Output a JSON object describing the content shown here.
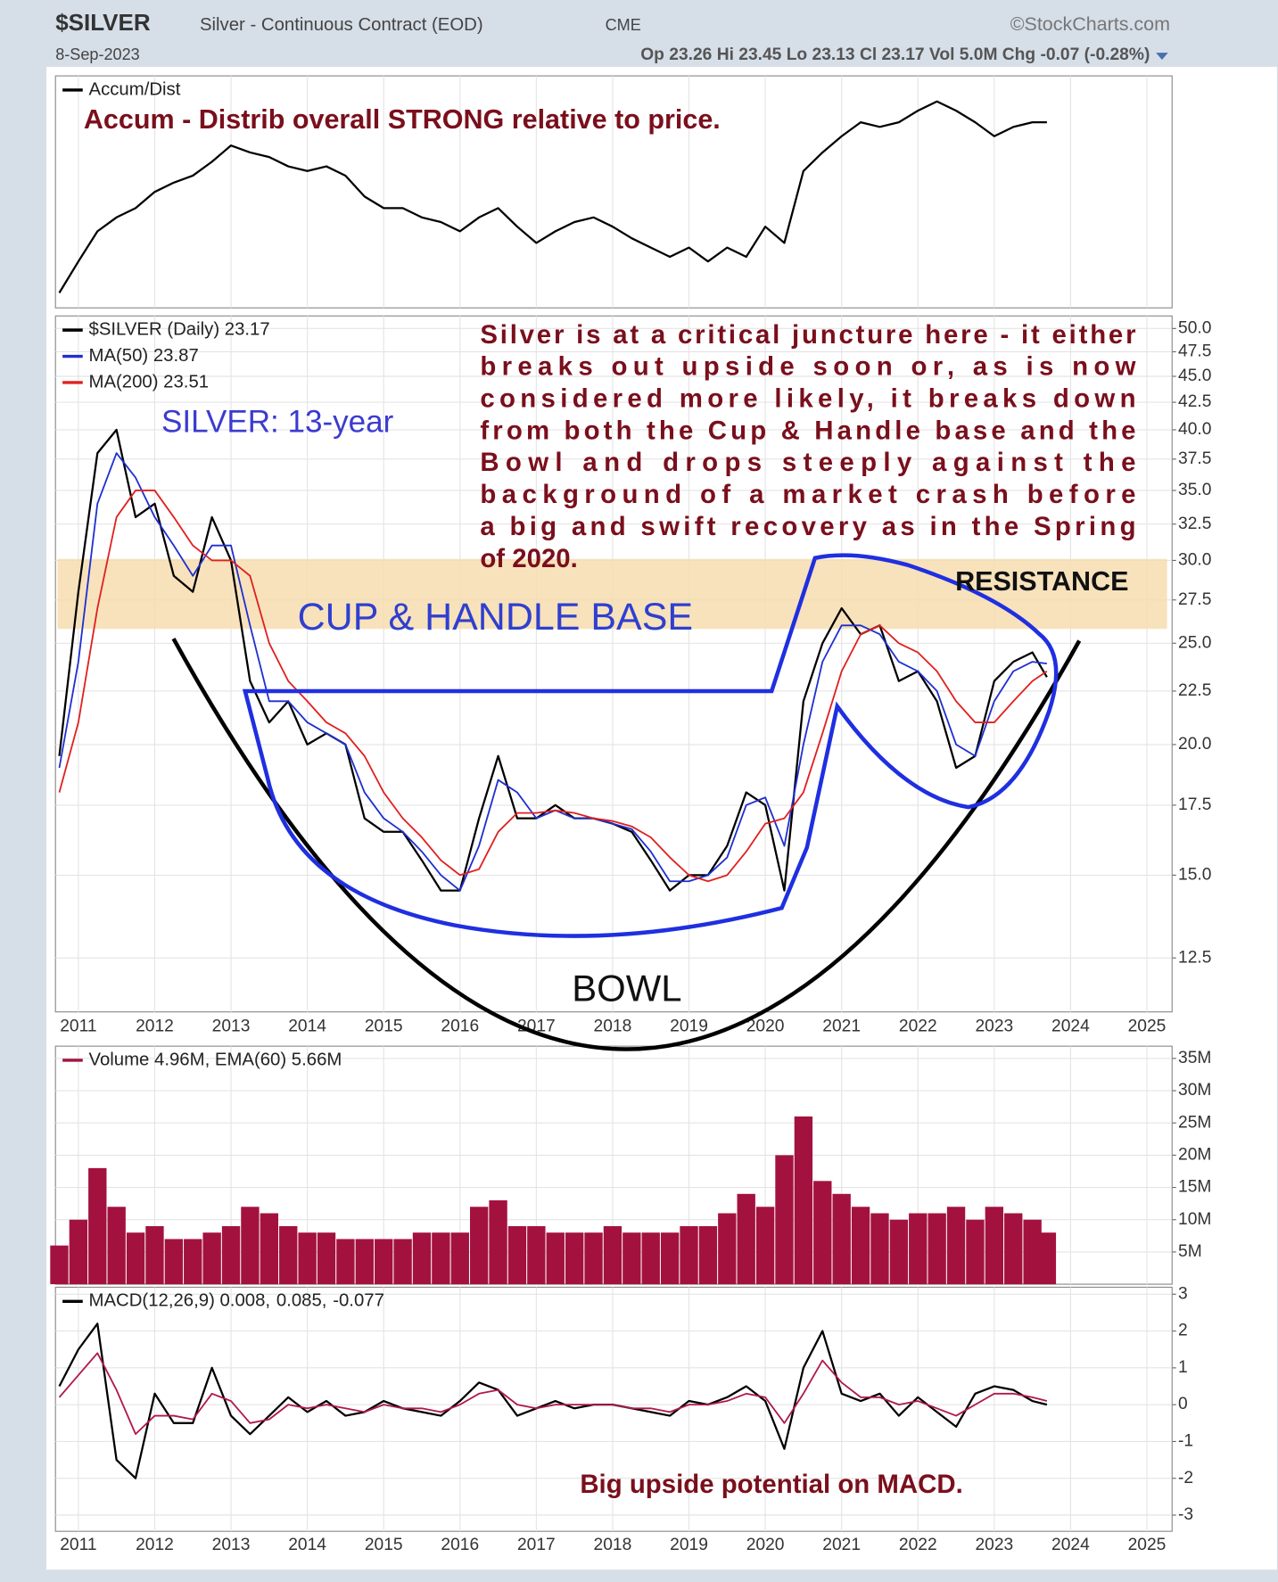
{
  "header": {
    "symbol": "$SILVER",
    "description": "Silver - Continuous Contract (EOD)",
    "exchange": "CME",
    "source": "©StockCharts.com",
    "date": "8-Sep-2023",
    "quote": "Op 23.26 Hi 23.45 Lo 23.13 Cl 23.17 Vol 5.0M Chg -0.07 (-0.28%)"
  },
  "chart_data": [
    {
      "type": "line",
      "annotation": "Accum - Distrib overall STRONG relative to price.",
      "x": [
        2010.75,
        2011,
        2011.25,
        2011.5,
        2011.75,
        2012,
        2012.25,
        2012.5,
        2012.75,
        2013,
        2013.25,
        2013.5,
        2013.75,
        2014,
        2014.25,
        2014.5,
        2014.75,
        2015,
        2015.25,
        2015.5,
        2015.75,
        2016,
        2016.25,
        2016.5,
        2016.75,
        2017,
        2017.25,
        2017.5,
        2017.75,
        2018,
        2018.25,
        2018.5,
        2018.75,
        2019,
        2019.25,
        2019.5,
        2019.75,
        2020,
        2020.25,
        2020.5,
        2020.75,
        2021,
        2021.25,
        2021.5,
        2021.75,
        2022,
        2022.25,
        2022.5,
        2022.75,
        2023,
        2023.25,
        2023.5,
        2023.69
      ],
      "series": [
        {
          "name": "Accum/Dist",
          "color": "#000000",
          "values": [
            6.5,
            20,
            33,
            39,
            43,
            50,
            54,
            57,
            63,
            70,
            67,
            65,
            61,
            59,
            61,
            57,
            48,
            43,
            43,
            39,
            37,
            33,
            39,
            43,
            35,
            28,
            33,
            37,
            39,
            35,
            30,
            26,
            22,
            26,
            20,
            26,
            22,
            35,
            28,
            59,
            67,
            74,
            80,
            78,
            80,
            85,
            89,
            85,
            80,
            74,
            78,
            80,
            80
          ]
        }
      ],
      "xlim": [
        2010.7,
        2025.33
      ],
      "ylim": [
        0,
        100
      ],
      "xticks": [
        2011,
        2012,
        2013,
        2014,
        2015,
        2016,
        2017,
        2018,
        2019,
        2020,
        2021,
        2022,
        2023,
        2024,
        2025
      ],
      "grid": true
    },
    {
      "type": "line",
      "log_scale": true,
      "annotation_title": "SILVER: 13-year",
      "annotation_lines": [
        "Silver is at a critical juncture here - it either",
        "breaks out upside soon or, as is now",
        "considered more likely, it breaks down",
        "from both the Cup & Handle base and the",
        "Bowl and drops steeply against the",
        "background of a market crash before",
        "a big and swift recovery as in the Spring",
        "of 2020."
      ],
      "pattern_label": "CUP & HANDLE BASE",
      "resistance_label": "RESISTANCE",
      "bowl_label": "BOWL",
      "band": {
        "from": 25.8,
        "to": 30.1,
        "color": "#f6ddb0"
      },
      "x": [
        2010.75,
        2011,
        2011.25,
        2011.5,
        2011.75,
        2012,
        2012.25,
        2012.5,
        2012.75,
        2013,
        2013.25,
        2013.5,
        2013.75,
        2014,
        2014.25,
        2014.5,
        2014.75,
        2015,
        2015.25,
        2015.5,
        2015.75,
        2016,
        2016.25,
        2016.5,
        2016.75,
        2017,
        2017.25,
        2017.5,
        2017.75,
        2018,
        2018.25,
        2018.5,
        2018.75,
        2019,
        2019.25,
        2019.5,
        2019.75,
        2020,
        2020.25,
        2020.5,
        2020.75,
        2021,
        2021.25,
        2021.5,
        2021.75,
        2022,
        2022.25,
        2022.5,
        2022.75,
        2023,
        2023.25,
        2023.5,
        2023.69
      ],
      "series": [
        {
          "name": "$SILVER (Daily) 23.17",
          "color": "#000000",
          "values": [
            19.5,
            28,
            38,
            40,
            33,
            34,
            29,
            28,
            33,
            30,
            23,
            21,
            22,
            20,
            20.5,
            20,
            17,
            16.5,
            16.5,
            15.5,
            14.5,
            14.5,
            17,
            19.5,
            17,
            17,
            17.5,
            17,
            17,
            16.8,
            16.5,
            15.5,
            14.5,
            15,
            15,
            16,
            18,
            17.5,
            14.5,
            22,
            25,
            27,
            25.5,
            26,
            23,
            23.5,
            22,
            19,
            19.5,
            23,
            24,
            24.5,
            23.2
          ]
        },
        {
          "name": "MA(50) 23.87",
          "color": "#1f2fd0",
          "values": [
            19,
            24,
            34,
            38,
            36,
            33,
            31,
            29,
            31,
            31,
            26,
            22,
            22,
            21,
            20.5,
            20,
            18,
            17,
            16.5,
            15.8,
            15,
            14.5,
            16,
            18.5,
            18,
            17,
            17.3,
            17,
            17,
            16.8,
            16.6,
            15.8,
            14.8,
            14.8,
            15,
            15.6,
            17.5,
            17.8,
            16,
            20,
            24,
            26,
            26,
            25.5,
            24,
            23.5,
            22.5,
            20,
            19.5,
            22,
            23.5,
            24,
            23.9
          ]
        },
        {
          "name": "MA(200) 23.51",
          "color": "#e02020",
          "values": [
            18,
            21,
            27,
            33,
            35,
            35,
            33,
            31,
            30,
            30,
            29,
            25,
            23,
            22,
            21,
            20.5,
            19.5,
            18,
            17,
            16.3,
            15.5,
            15,
            15.2,
            16.5,
            17.2,
            17.2,
            17.3,
            17.2,
            17,
            16.9,
            16.7,
            16.3,
            15.6,
            15,
            14.8,
            15,
            15.8,
            16.8,
            17,
            18,
            20.5,
            23.5,
            25.5,
            26,
            25,
            24.5,
            23.5,
            22,
            21,
            21,
            22,
            23,
            23.5
          ]
        }
      ],
      "xlim": [
        2010.7,
        2025.33
      ],
      "ylim": [
        11.1,
        51.4
      ],
      "yticks": [
        12.5,
        {
          "value": 15,
          "label": "15.0"
        },
        17.5,
        {
          "value": 20,
          "label": "20.0"
        },
        22.5,
        {
          "value": 25,
          "label": "25.0"
        },
        27.5,
        {
          "value": 30,
          "label": "30.0"
        },
        32.5,
        {
          "value": 35,
          "label": "35.0"
        },
        37.5,
        {
          "value": 40,
          "label": "40.0"
        },
        42.5,
        {
          "value": 45,
          "label": "45.0"
        },
        47.5,
        {
          "value": 50,
          "label": "50.0"
        }
      ],
      "xticks": [
        2011,
        2012,
        2013,
        2014,
        2015,
        2016,
        2017,
        2018,
        2019,
        2020,
        2021,
        2022,
        2023,
        2024,
        2025
      ],
      "grid": true
    },
    {
      "type": "bar",
      "x": [
        2010.75,
        2011,
        2011.25,
        2011.5,
        2011.75,
        2012,
        2012.25,
        2012.5,
        2012.75,
        2013,
        2013.25,
        2013.5,
        2013.75,
        2014,
        2014.25,
        2014.5,
        2014.75,
        2015,
        2015.25,
        2015.5,
        2015.75,
        2016,
        2016.25,
        2016.5,
        2016.75,
        2017,
        2017.25,
        2017.5,
        2017.75,
        2018,
        2018.25,
        2018.5,
        2018.75,
        2019,
        2019.25,
        2019.5,
        2019.75,
        2020,
        2020.25,
        2020.5,
        2020.75,
        2021,
        2021.25,
        2021.5,
        2021.75,
        2022,
        2022.25,
        2022.5,
        2022.75,
        2023,
        2023.25,
        2023.5,
        2023.69
      ],
      "series": [
        {
          "name": "Volume 4.96M, EMA(60) 5.66M",
          "color": "#a3123e",
          "values": [
            6,
            10,
            18,
            12,
            8,
            9,
            7,
            7,
            8,
            9,
            12,
            11,
            9,
            8,
            8,
            7,
            7,
            7,
            7,
            8,
            8,
            8,
            12,
            13,
            9,
            9,
            8,
            8,
            8,
            9,
            8,
            8,
            8,
            9,
            9,
            11,
            14,
            12,
            20,
            26,
            16,
            14,
            12,
            11,
            10,
            11,
            11,
            12,
            10,
            12,
            11,
            10,
            8
          ]
        }
      ],
      "xlim": [
        2010.7,
        2025.33
      ],
      "ylim": [
        0,
        36.9
      ],
      "yticks": [
        {
          "value": 5,
          "label": "5M"
        },
        {
          "value": 10,
          "label": "10M"
        },
        {
          "value": 15,
          "label": "15M"
        },
        {
          "value": 20,
          "label": "20M"
        },
        {
          "value": 25,
          "label": "25M"
        },
        {
          "value": 30,
          "label": "30M"
        },
        {
          "value": 35,
          "label": "35M"
        }
      ],
      "xticks": [
        2011,
        2012,
        2013,
        2014,
        2015,
        2016,
        2017,
        2018,
        2019,
        2020,
        2021,
        2022,
        2023,
        2024,
        2025
      ],
      "grid": true
    },
    {
      "type": "line",
      "annotation": "Big upside potential on MACD.",
      "histogram_label": "-0.077",
      "histogram_color": "#3a8a6a",
      "x": [
        2010.75,
        2011,
        2011.25,
        2011.5,
        2011.75,
        2012,
        2012.25,
        2012.5,
        2012.75,
        2013,
        2013.25,
        2013.5,
        2013.75,
        2014,
        2014.25,
        2014.5,
        2014.75,
        2015,
        2015.25,
        2015.5,
        2015.75,
        2016,
        2016.25,
        2016.5,
        2016.75,
        2017,
        2017.25,
        2017.5,
        2017.75,
        2018,
        2018.25,
        2018.5,
        2018.75,
        2019,
        2019.25,
        2019.5,
        2019.75,
        2020,
        2020.25,
        2020.5,
        2020.75,
        2021,
        2021.25,
        2021.5,
        2021.75,
        2022,
        2022.25,
        2022.5,
        2022.75,
        2023,
        2023.25,
        2023.5,
        2023.69
      ],
      "series": [
        {
          "name": "MACD(12,26,9) 0.008,",
          "color": "#000000",
          "values": [
            0.5,
            1.5,
            2.2,
            -1.5,
            -2,
            0.3,
            -0.5,
            -0.5,
            1,
            -0.3,
            -0.8,
            -0.3,
            0.2,
            -0.2,
            0.1,
            -0.3,
            -0.2,
            0.1,
            -0.1,
            -0.2,
            -0.3,
            0.1,
            0.6,
            0.4,
            -0.3,
            -0.1,
            0.1,
            -0.1,
            0,
            0,
            -0.1,
            -0.2,
            -0.3,
            0.1,
            0,
            0.2,
            0.5,
            0.1,
            -1.2,
            1,
            2,
            0.3,
            0.1,
            0.3,
            -0.3,
            0.2,
            -0.2,
            -0.6,
            0.3,
            0.5,
            0.4,
            0.1,
            0
          ]
        },
        {
          "name": "0.085,",
          "color": "#b01848",
          "values": [
            0.2,
            0.8,
            1.4,
            0.4,
            -0.8,
            -0.3,
            -0.3,
            -0.4,
            0.3,
            0.1,
            -0.5,
            -0.4,
            0,
            -0.1,
            0,
            -0.1,
            -0.2,
            0,
            -0.1,
            -0.1,
            -0.2,
            0,
            0.3,
            0.4,
            0,
            -0.1,
            0,
            0,
            0,
            0,
            -0.1,
            -0.1,
            -0.2,
            0,
            0,
            0.1,
            0.3,
            0.2,
            -0.5,
            0.3,
            1.2,
            0.6,
            0.2,
            0.2,
            0,
            0.1,
            -0.1,
            -0.3,
            0,
            0.3,
            0.3,
            0.2,
            0.1
          ]
        }
      ],
      "xlim": [
        2010.7,
        2025.33
      ],
      "ylim": [
        -3.44,
        3.19
      ],
      "yticks": [
        3,
        2,
        1,
        0,
        -1,
        -2,
        -3
      ],
      "xticks": [
        2011,
        2012,
        2013,
        2014,
        2015,
        2016,
        2017,
        2018,
        2019,
        2020,
        2021,
        2022,
        2023,
        2024,
        2025
      ],
      "grid": true
    }
  ]
}
